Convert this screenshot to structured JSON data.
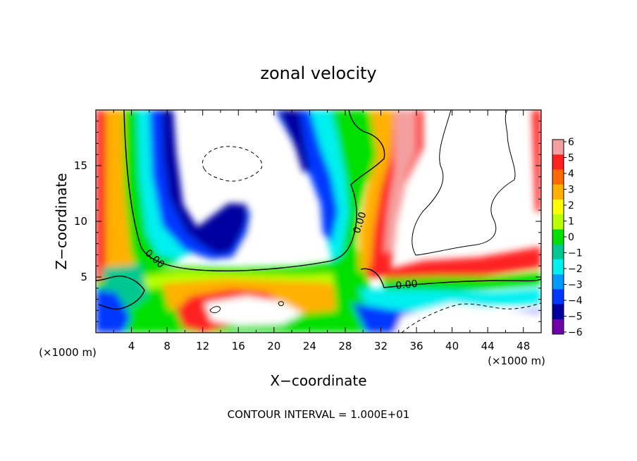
{
  "chart_data": {
    "type": "heatmap",
    "title": "zonal velocity",
    "xlabel": "X−coordinate",
    "ylabel": "Z−coordinate",
    "x_unit_left": "(×1000 m)",
    "x_unit_right": "(×1000 m)",
    "xlim": [
      0,
      50
    ],
    "ylim": [
      0,
      20
    ],
    "x_ticks": [
      4,
      8,
      12,
      16,
      20,
      24,
      28,
      32,
      36,
      40,
      44,
      48
    ],
    "x_tick_labels": [
      "4",
      "8",
      "12",
      "16",
      "20",
      "24",
      "28",
      "32",
      "36",
      "40",
      "44",
      "48"
    ],
    "y_ticks": [
      5,
      10,
      15
    ],
    "y_tick_labels": [
      "5",
      "10",
      "15"
    ],
    "colorbar": {
      "min": -6,
      "max": 6,
      "ticks": [
        6,
        5,
        4,
        3,
        2,
        1,
        0,
        -1,
        -2,
        -3,
        -4,
        -5,
        -6
      ],
      "tick_labels": [
        "6",
        "5",
        "4",
        "3",
        "2",
        "1",
        "0",
        "−1",
        "−2",
        "−3",
        "−4",
        "−5",
        "−6"
      ],
      "colors": [
        "#f4a0a0",
        "#ff2020",
        "#ff6a00",
        "#ffb000",
        "#ffff00",
        "#b8ff00",
        "#00e000",
        "#00c890",
        "#00f0f0",
        "#0099ff",
        "#0038ff",
        "#0000a0",
        "#7000a8"
      ]
    },
    "contour_labels": [
      "0.00",
      "0.00",
      "0.00"
    ],
    "contour_interval_label": "CONTOUR INTERVAL = 1.000E+01",
    "grid": false,
    "legend": "colorbar-right"
  }
}
